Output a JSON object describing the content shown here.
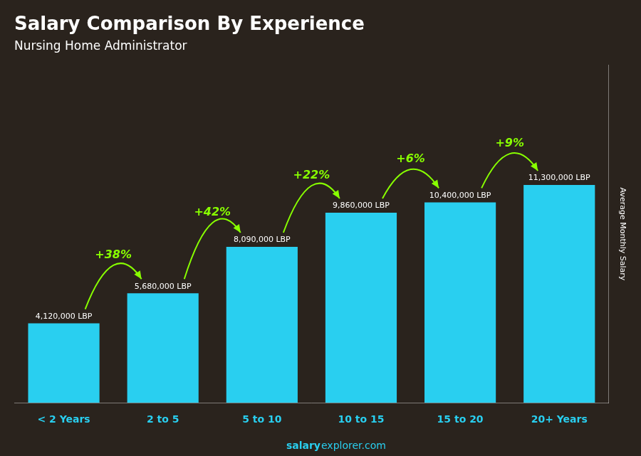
{
  "chart_data": {
    "type": "bar",
    "title": "Salary Comparison By Experience",
    "subtitle": "Nursing Home Administrator",
    "categories": [
      "< 2 Years",
      "2 to 5",
      "5 to 10",
      "10 to 15",
      "15 to 20",
      "20+ Years"
    ],
    "values": [
      4120000,
      5680000,
      8090000,
      9860000,
      10400000,
      11300000
    ],
    "value_labels": [
      "4,120,000 LBP",
      "5,680,000 LBP",
      "8,090,000 LBP",
      "9,860,000 LBP",
      "10,400,000 LBP",
      "11,300,000 LBP"
    ],
    "data_labels": true,
    "annotations": [
      "+38%",
      "+42%",
      "+22%",
      "+6%",
      "+9%"
    ],
    "ylabel": "Average Monthly Salary",
    "watermark": [
      "salary",
      "explorer.com"
    ],
    "color": "#29cff0",
    "ylim": [
      0,
      17515000
    ],
    "grid": false,
    "tick_labels": "x"
  }
}
